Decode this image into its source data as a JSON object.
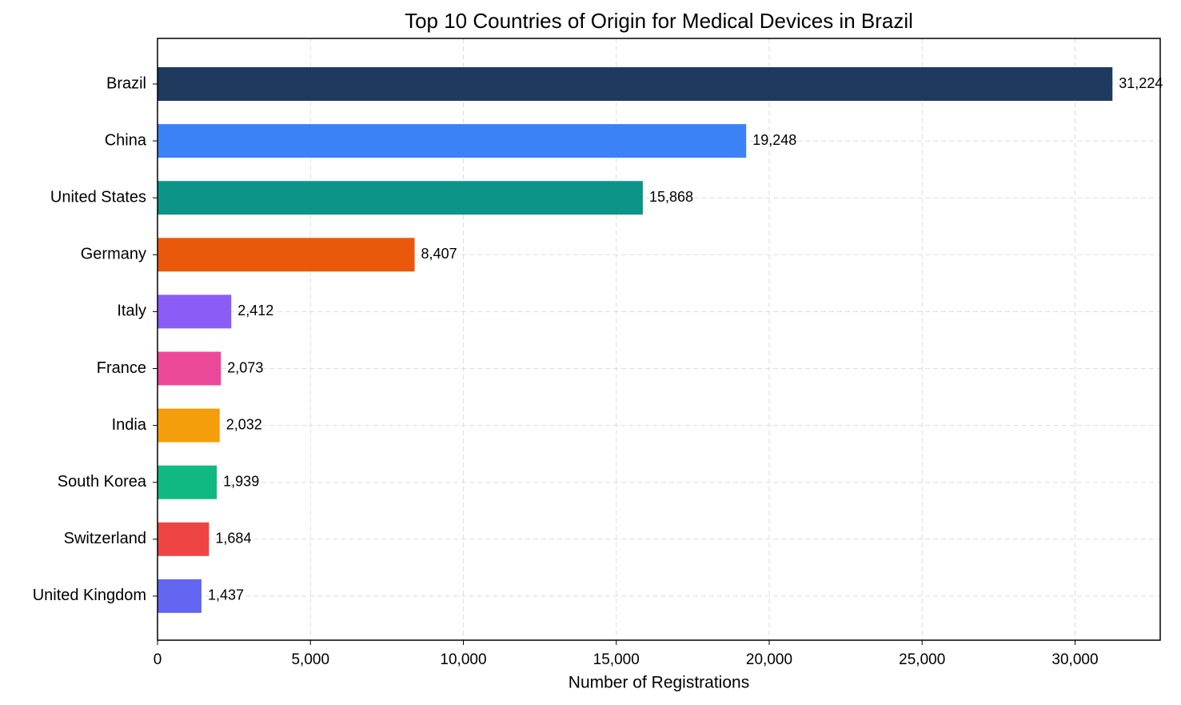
{
  "chart_data": {
    "type": "barh",
    "title": "Top 10 Countries of Origin for Medical Devices in Brazil",
    "x_label": "Number of Registrations",
    "categories": [
      "Brazil",
      "China",
      "United States",
      "Germany",
      "Italy",
      "France",
      "India",
      "South Korea",
      "Switzerland",
      "United Kingdom"
    ],
    "values": [
      31224,
      19248,
      15868,
      8407,
      2412,
      2073,
      2032,
      1939,
      1684,
      1437
    ],
    "value_labels": [
      "31,224",
      "19,248",
      "15,868",
      "8,407",
      "2,412",
      "2,073",
      "2,032",
      "1,939",
      "1,684",
      "1,437"
    ],
    "colors": [
      "#1e3a5f",
      "#3b82f6",
      "#0d9488",
      "#ea580c",
      "#8b5cf6",
      "#ec4899",
      "#f59e0b",
      "#10b981",
      "#ef4444",
      "#6366f1"
    ],
    "xlim": [
      0,
      32785
    ],
    "xticks": [
      0,
      {
        "value": 5000,
        "label": "5,000"
      },
      {
        "value": 10000,
        "label": "10,000"
      },
      {
        "value": 15000,
        "label": "15,000"
      },
      {
        "value": 20000,
        "label": "20,000"
      },
      {
        "value": 25000,
        "label": "25,000"
      },
      {
        "value": 30000,
        "label": "30,000"
      }
    ],
    "grid": true
  }
}
